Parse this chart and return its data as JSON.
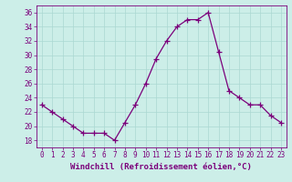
{
  "x": [
    0,
    1,
    2,
    3,
    4,
    5,
    6,
    7,
    8,
    9,
    10,
    11,
    12,
    13,
    14,
    15,
    16,
    17,
    18,
    19,
    20,
    21,
    22,
    23
  ],
  "y": [
    23,
    22,
    21,
    20,
    19,
    19,
    19,
    18,
    20.5,
    23,
    26,
    29.5,
    32,
    34,
    35,
    35,
    36,
    30.5,
    25,
    24,
    23,
    23,
    21.5,
    20.5
  ],
  "line_color": "#7b007b",
  "marker": "+",
  "marker_size": 4,
  "marker_color": "#7b007b",
  "bg_color": "#cceee8",
  "grid_color": "#aad8d2",
  "xlabel": "Windchill (Refroidissement éolien,°C)",
  "xlabel_fontsize": 6.5,
  "tick_color": "#7b007b",
  "tick_fontsize": 5.5,
  "ylim": [
    17,
    37
  ],
  "xlim": [
    -0.5,
    23.5
  ],
  "yticks": [
    18,
    20,
    22,
    24,
    26,
    28,
    30,
    32,
    34,
    36
  ],
  "xticks": [
    0,
    1,
    2,
    3,
    4,
    5,
    6,
    7,
    8,
    9,
    10,
    11,
    12,
    13,
    14,
    15,
    16,
    17,
    18,
    19,
    20,
    21,
    22,
    23
  ],
  "spine_color": "#7b007b",
  "linewidth": 0.9
}
